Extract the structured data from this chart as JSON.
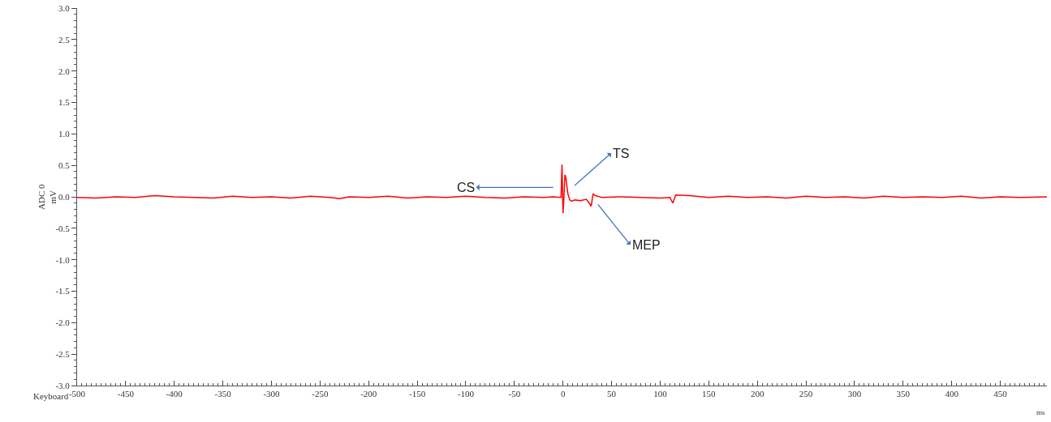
{
  "chart_data": {
    "type": "line",
    "xlabel": "ms",
    "ylabel": "ADC 0\nmV",
    "xlim": [
      -500,
      498
    ],
    "ylim": [
      -3,
      3
    ],
    "xticks": [
      -500,
      -450,
      -400,
      -350,
      -300,
      -250,
      -200,
      -150,
      -100,
      -50,
      0,
      50,
      100,
      150,
      200,
      250,
      300,
      350,
      400,
      450
    ],
    "yticks": [
      {
        "value": -3,
        "label": "-3.0"
      },
      {
        "value": -2.5,
        "label": "-2.5"
      },
      {
        "value": -2,
        "label": "-2.0"
      },
      {
        "value": -1.5,
        "label": "-1.5"
      },
      {
        "value": -1,
        "label": "-1.0"
      },
      {
        "value": -0.5,
        "label": "-0.5"
      },
      {
        "value": 0,
        "label": "0.0"
      },
      {
        "value": 0.5,
        "label": "0.5"
      },
      {
        "value": 1,
        "label": "1.0"
      },
      {
        "value": 1.5,
        "label": "1.5"
      },
      {
        "value": 2,
        "label": "2.0"
      },
      {
        "value": 2.5,
        "label": "2.5"
      },
      {
        "value": 3,
        "label": "3.0"
      }
    ],
    "marker": "none",
    "line_style": "solid",
    "series": [
      {
        "color": "#ff0000",
        "x": [
          -500,
          -480,
          -460,
          -440,
          -420,
          -400,
          -380,
          -360,
          -340,
          -320,
          -300,
          -280,
          -260,
          -240,
          -230,
          -220,
          -200,
          -180,
          -160,
          -140,
          -120,
          -100,
          -80,
          -60,
          -40,
          -20,
          -10,
          -2,
          -1,
          0,
          1,
          2,
          3,
          5,
          7,
          9,
          12,
          18,
          24,
          27,
          29,
          31,
          33,
          40,
          60,
          80,
          100,
          110,
          113,
          116,
          130,
          150,
          170,
          190,
          210,
          230,
          250,
          270,
          290,
          310,
          330,
          350,
          370,
          390,
          410,
          430,
          450,
          470,
          498
        ],
        "values": [
          -0.01,
          -0.02,
          0.0,
          -0.01,
          0.02,
          0.0,
          -0.01,
          -0.02,
          0.01,
          -0.01,
          0.0,
          -0.02,
          0.01,
          -0.01,
          -0.03,
          0.0,
          -0.01,
          0.01,
          -0.02,
          0.0,
          -0.01,
          0.01,
          -0.01,
          -0.02,
          0.0,
          -0.01,
          0.0,
          -0.01,
          0.51,
          -0.26,
          0.0,
          0.35,
          0.3,
          0.05,
          -0.05,
          -0.07,
          -0.05,
          -0.06,
          -0.04,
          -0.1,
          -0.15,
          0.05,
          0.02,
          -0.01,
          0.0,
          -0.01,
          -0.02,
          -0.01,
          -0.1,
          0.03,
          0.02,
          -0.01,
          0.01,
          -0.01,
          0.0,
          -0.02,
          0.01,
          -0.01,
          0.0,
          -0.02,
          0.01,
          -0.01,
          0.0,
          -0.01,
          0.01,
          -0.02,
          0.0,
          -0.01,
          0.0
        ]
      }
    ],
    "annotations": [
      "CS",
      "TS",
      "MEP",
      "Keyboard"
    ]
  }
}
